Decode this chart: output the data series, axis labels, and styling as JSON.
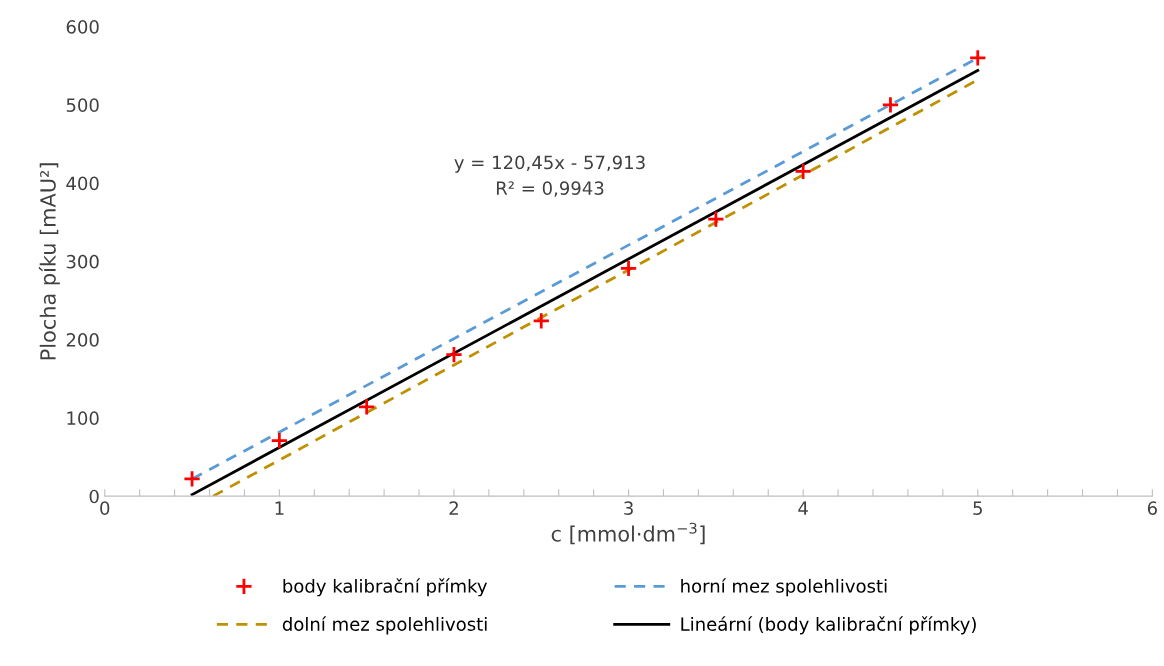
{
  "chart_data": {
    "type": "scatter",
    "xlabel": "c [mmol·dm$^{−3}$]",
    "ylabel": "Plocha píku [mAU²]",
    "xlim": [
      0,
      6
    ],
    "ylim": [
      0,
      600
    ],
    "xticks": [
      0,
      {
        "value": 0.2,
        "label": null
      },
      {
        "value": 0.4,
        "label": null
      },
      {
        "value": 0.6,
        "label": null
      },
      {
        "value": 0.8,
        "label": null
      },
      1,
      {
        "value": 1.2,
        "label": null
      },
      {
        "value": 1.4,
        "label": null
      },
      {
        "value": 1.6,
        "label": null
      },
      {
        "value": 1.8,
        "label": null
      },
      2,
      {
        "value": 2.2,
        "label": null
      },
      {
        "value": 2.4,
        "label": null
      },
      {
        "value": 2.6,
        "label": null
      },
      {
        "value": 2.8,
        "label": null
      },
      3,
      {
        "value": 3.2,
        "label": null
      },
      {
        "value": 3.4,
        "label": null
      },
      {
        "value": 3.6,
        "label": null
      },
      {
        "value": 3.8,
        "label": null
      },
      4,
      {
        "value": 4.2,
        "label": null
      },
      {
        "value": 4.4,
        "label": null
      },
      {
        "value": 4.6,
        "label": null
      },
      {
        "value": 4.8,
        "label": null
      },
      5,
      {
        "value": 5.2,
        "label": null
      },
      {
        "value": 5.4,
        "label": null
      },
      {
        "value": 5.6,
        "label": null
      },
      {
        "value": 5.8,
        "label": null
      },
      6
    ],
    "yticks": [
      0,
      100,
      200,
      300,
      400,
      500,
      600
    ],
    "grid": false,
    "legend": "bottom",
    "series": [
      {
        "name": "body kalibrační přímky",
        "marker": "cross",
        "color": "#ff0000",
        "x": [
          0.5,
          1,
          1.5,
          2,
          2.5,
          3,
          3.5,
          4,
          4.5,
          5
        ],
        "values": [
          22,
          71,
          114,
          181,
          224,
          291,
          354,
          415,
          500,
          560
        ]
      },
      {
        "name": "horní mez spolehlivosti",
        "type": "line",
        "line_style": "dashed",
        "color": "#5b9bd5",
        "x": [
          0.5,
          5
        ],
        "values": [
          22,
          560
        ]
      },
      {
        "name": "dolní mez spolehlivosti",
        "type": "line",
        "line_style": "dashed",
        "color": "#bf9000",
        "x": [
          0.62,
          5
        ],
        "values": [
          0,
          532
        ]
      },
      {
        "name": "Lineární (body kalibrační přímky)",
        "type": "line",
        "line_style": "solid",
        "color": "#000000",
        "x": [
          0.5,
          5
        ],
        "values": [
          2,
          544
        ]
      }
    ],
    "annotations": [
      "y = 120,45x - 57,913\nR² = 0,9943"
    ]
  }
}
